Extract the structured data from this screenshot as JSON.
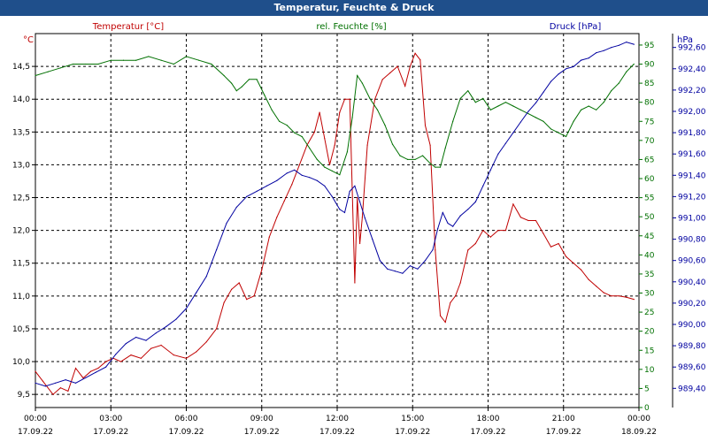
{
  "window": {
    "title": "Temperatur, Feuchte & Druck"
  },
  "colors": {
    "temp": "#c00000",
    "hum": "#007000",
    "press": "#0000a0",
    "titlebar": "#1f4f8b"
  },
  "chart_data": {
    "type": "line",
    "title": "Temperatur, Feuchte & Druck",
    "grid": true,
    "xlim": [
      0,
      24
    ],
    "x_ticks": [
      {
        "t": 0,
        "time": "00:00",
        "date": "17.09.22"
      },
      {
        "t": 3,
        "time": "03:00",
        "date": "17.09.22"
      },
      {
        "t": 6,
        "time": "06:00",
        "date": "17.09.22"
      },
      {
        "t": 9,
        "time": "09:00",
        "date": "17.09.22"
      },
      {
        "t": 12,
        "time": "12:00",
        "date": "17.09.22"
      },
      {
        "t": 15,
        "time": "15:00",
        "date": "17.09.22"
      },
      {
        "t": 18,
        "time": "18:00",
        "date": "17.09.22"
      },
      {
        "t": 21,
        "time": "21:00",
        "date": "17.09.22"
      },
      {
        "t": 24,
        "time": "00:00",
        "date": "18.09.22"
      }
    ],
    "axes": {
      "temp": {
        "unit": "°C",
        "ylim": [
          9.3,
          15.0
        ],
        "ticks": [
          "9,5",
          "10,0",
          "10,5",
          "11,0",
          "11,5",
          "12,0",
          "12,5",
          "13,0",
          "13,5",
          "14,0",
          "14,5"
        ]
      },
      "hum": {
        "unit": "%",
        "ylim": [
          0,
          98
        ],
        "ticks": [
          "0",
          "5",
          "10",
          "15",
          "20",
          "25",
          "30",
          "35",
          "40",
          "45",
          "50",
          "55",
          "60",
          "65",
          "70",
          "75",
          "80",
          "85",
          "90",
          "95"
        ]
      },
      "press": {
        "unit": "hPa",
        "ylim": [
          989.22,
          992.73
        ],
        "ticks": [
          "989,40",
          "989,60",
          "989,80",
          "990,00",
          "990,20",
          "990,40",
          "990,60",
          "990,80",
          "991,00",
          "991,20",
          "991,40",
          "991,60",
          "991,80",
          "992,00",
          "992,20",
          "992,40",
          "992,60"
        ]
      }
    },
    "series": [
      {
        "name": "Temperatur [°C]",
        "axis": "temp",
        "color": "#c00000",
        "x": [
          0,
          0.3,
          0.7,
          1,
          1.3,
          1.6,
          1.9,
          2.2,
          2.5,
          2.8,
          3.1,
          3.4,
          3.8,
          4.2,
          4.6,
          5,
          5.5,
          6,
          6.4,
          6.8,
          7.2,
          7.5,
          7.8,
          8.1,
          8.4,
          8.7,
          9,
          9.3,
          9.6,
          9.9,
          10.2,
          10.5,
          10.8,
          11.1,
          11.3,
          11.5,
          11.7,
          11.9,
          12.1,
          12.3,
          12.5,
          12.7,
          12.8,
          12.9,
          13.0,
          13.2,
          13.5,
          13.8,
          14.1,
          14.4,
          14.7,
          14.9,
          15.1,
          15.3,
          15.5,
          15.7,
          15.9,
          16.1,
          16.3,
          16.5,
          16.7,
          16.9,
          17.2,
          17.5,
          17.8,
          18.1,
          18.4,
          18.7,
          19,
          19.3,
          19.6,
          19.9,
          20.2,
          20.5,
          20.8,
          21.1,
          21.4,
          21.7,
          22,
          22.3,
          22.6,
          22.9,
          23.2,
          23.5,
          23.8
        ],
        "y": [
          9.85,
          9.7,
          9.5,
          9.6,
          9.55,
          9.9,
          9.75,
          9.85,
          9.9,
          10.0,
          10.05,
          10.0,
          10.1,
          10.05,
          10.2,
          10.25,
          10.1,
          10.05,
          10.15,
          10.3,
          10.5,
          10.9,
          11.1,
          11.2,
          10.95,
          11.0,
          11.4,
          11.9,
          12.2,
          12.45,
          12.7,
          13.0,
          13.3,
          13.5,
          13.8,
          13.4,
          13.0,
          13.3,
          13.8,
          14.0,
          14.0,
          11.2,
          12.5,
          11.8,
          12.2,
          13.3,
          14.0,
          14.3,
          14.4,
          14.5,
          14.2,
          14.5,
          14.7,
          14.6,
          13.6,
          13.3,
          11.7,
          10.7,
          10.6,
          10.9,
          11.0,
          11.2,
          11.7,
          11.8,
          12.0,
          11.9,
          12.0,
          12.0,
          12.4,
          12.2,
          12.15,
          12.15,
          11.95,
          11.75,
          11.8,
          11.6,
          11.5,
          11.4,
          11.25,
          11.15,
          11.05,
          11.0,
          11.0,
          10.98,
          10.95
        ]
      },
      {
        "name": "rel. Feuchte [%]",
        "axis": "hum",
        "color": "#007000",
        "x": [
          0,
          0.5,
          1,
          1.5,
          2,
          2.5,
          3,
          3.5,
          4,
          4.5,
          5,
          5.5,
          6,
          6.5,
          7,
          7.5,
          7.8,
          8,
          8.2,
          8.5,
          8.8,
          9.1,
          9.4,
          9.7,
          10,
          10.3,
          10.6,
          10.9,
          11.2,
          11.5,
          11.8,
          12.1,
          12.4,
          12.6,
          12.8,
          13.0,
          13.3,
          13.6,
          13.9,
          14.2,
          14.5,
          14.8,
          15.1,
          15.4,
          15.7,
          15.9,
          16.1,
          16.3,
          16.6,
          16.9,
          17.2,
          17.5,
          17.8,
          18.1,
          18.4,
          18.7,
          19,
          19.3,
          19.6,
          19.9,
          20.2,
          20.5,
          20.8,
          21.1,
          21.4,
          21.7,
          22,
          22.3,
          22.6,
          22.9,
          23.2,
          23.5,
          23.8
        ],
        "y": [
          87,
          88,
          89,
          90,
          90,
          90,
          91,
          91,
          91,
          92,
          91,
          90,
          92,
          91,
          90,
          87,
          85,
          83,
          84,
          86,
          86,
          82,
          78,
          75,
          74,
          72,
          71,
          68,
          65,
          63,
          62,
          61,
          67,
          76,
          87,
          85,
          81,
          78,
          74,
          69,
          66,
          65,
          65,
          66,
          64,
          63,
          63,
          68,
          75,
          81,
          83,
          80,
          81,
          78,
          79,
          80,
          79,
          78,
          77,
          76,
          75,
          73,
          72,
          71,
          75,
          78,
          79,
          78,
          80,
          83,
          85,
          88,
          90
        ]
      },
      {
        "name": "Druck [hPa]",
        "axis": "press",
        "color": "#0000a0",
        "x": [
          0,
          0.4,
          0.8,
          1.2,
          1.6,
          2,
          2.4,
          2.8,
          3.2,
          3.6,
          4,
          4.4,
          4.8,
          5.2,
          5.6,
          6,
          6.4,
          6.8,
          7.2,
          7.6,
          8,
          8.4,
          8.8,
          9.2,
          9.6,
          10,
          10.3,
          10.6,
          10.9,
          11.2,
          11.5,
          11.8,
          12.1,
          12.3,
          12.5,
          12.7,
          12.9,
          13.1,
          13.4,
          13.7,
          14,
          14.3,
          14.6,
          14.9,
          15.2,
          15.5,
          15.8,
          16,
          16.2,
          16.4,
          16.6,
          16.9,
          17.2,
          17.5,
          17.8,
          18.1,
          18.4,
          18.7,
          19,
          19.3,
          19.6,
          19.9,
          20.2,
          20.5,
          20.8,
          21.1,
          21.4,
          21.7,
          22,
          22.3,
          22.6,
          22.9,
          23.2,
          23.5,
          23.8
        ],
        "y": [
          989.45,
          989.42,
          989.45,
          989.48,
          989.45,
          989.5,
          989.55,
          989.6,
          989.72,
          989.82,
          989.88,
          989.85,
          989.92,
          989.98,
          990.05,
          990.15,
          990.3,
          990.45,
          990.7,
          990.95,
          991.1,
          991.2,
          991.25,
          991.3,
          991.35,
          991.42,
          991.45,
          991.4,
          991.38,
          991.35,
          991.3,
          991.2,
          991.08,
          991.05,
          991.25,
          991.3,
          991.15,
          991.0,
          990.8,
          990.6,
          990.52,
          990.5,
          990.48,
          990.55,
          990.52,
          990.6,
          990.7,
          990.9,
          991.05,
          990.95,
          990.92,
          991.02,
          991.08,
          991.15,
          991.3,
          991.45,
          991.6,
          991.7,
          991.8,
          991.9,
          992.0,
          992.08,
          992.18,
          992.28,
          992.35,
          992.4,
          992.42,
          992.48,
          992.5,
          992.55,
          992.57,
          992.6,
          992.62,
          992.65,
          992.63
        ]
      }
    ]
  }
}
